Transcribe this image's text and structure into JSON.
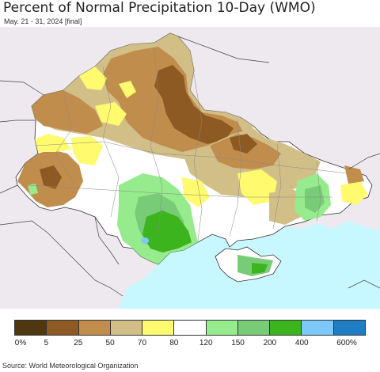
{
  "header": {
    "title": "Percent of Normal Precipitation 10-Day (WMO)",
    "subtitle": "May. 21 - 31, 2024 [final]"
  },
  "legend": {
    "colors": [
      "#4f3710",
      "#8c5a22",
      "#c08d4d",
      "#d2bf88",
      "#fffa6e",
      "#ffffff",
      "#96eb8c",
      "#78cc78",
      "#3cb41e",
      "#7dc8ff",
      "#1e7dc3"
    ],
    "tick_labels": [
      "0%",
      "5",
      "25",
      "50",
      "70",
      "80",
      "120",
      "150",
      "200",
      "400",
      "600%"
    ]
  },
  "map": {
    "sea_color": "#c8f8ff",
    "outside_color": "#ede9ef",
    "border_color": "#333333",
    "labels": []
  },
  "footer": {
    "source": "Source: World Meteorological Organization"
  }
}
